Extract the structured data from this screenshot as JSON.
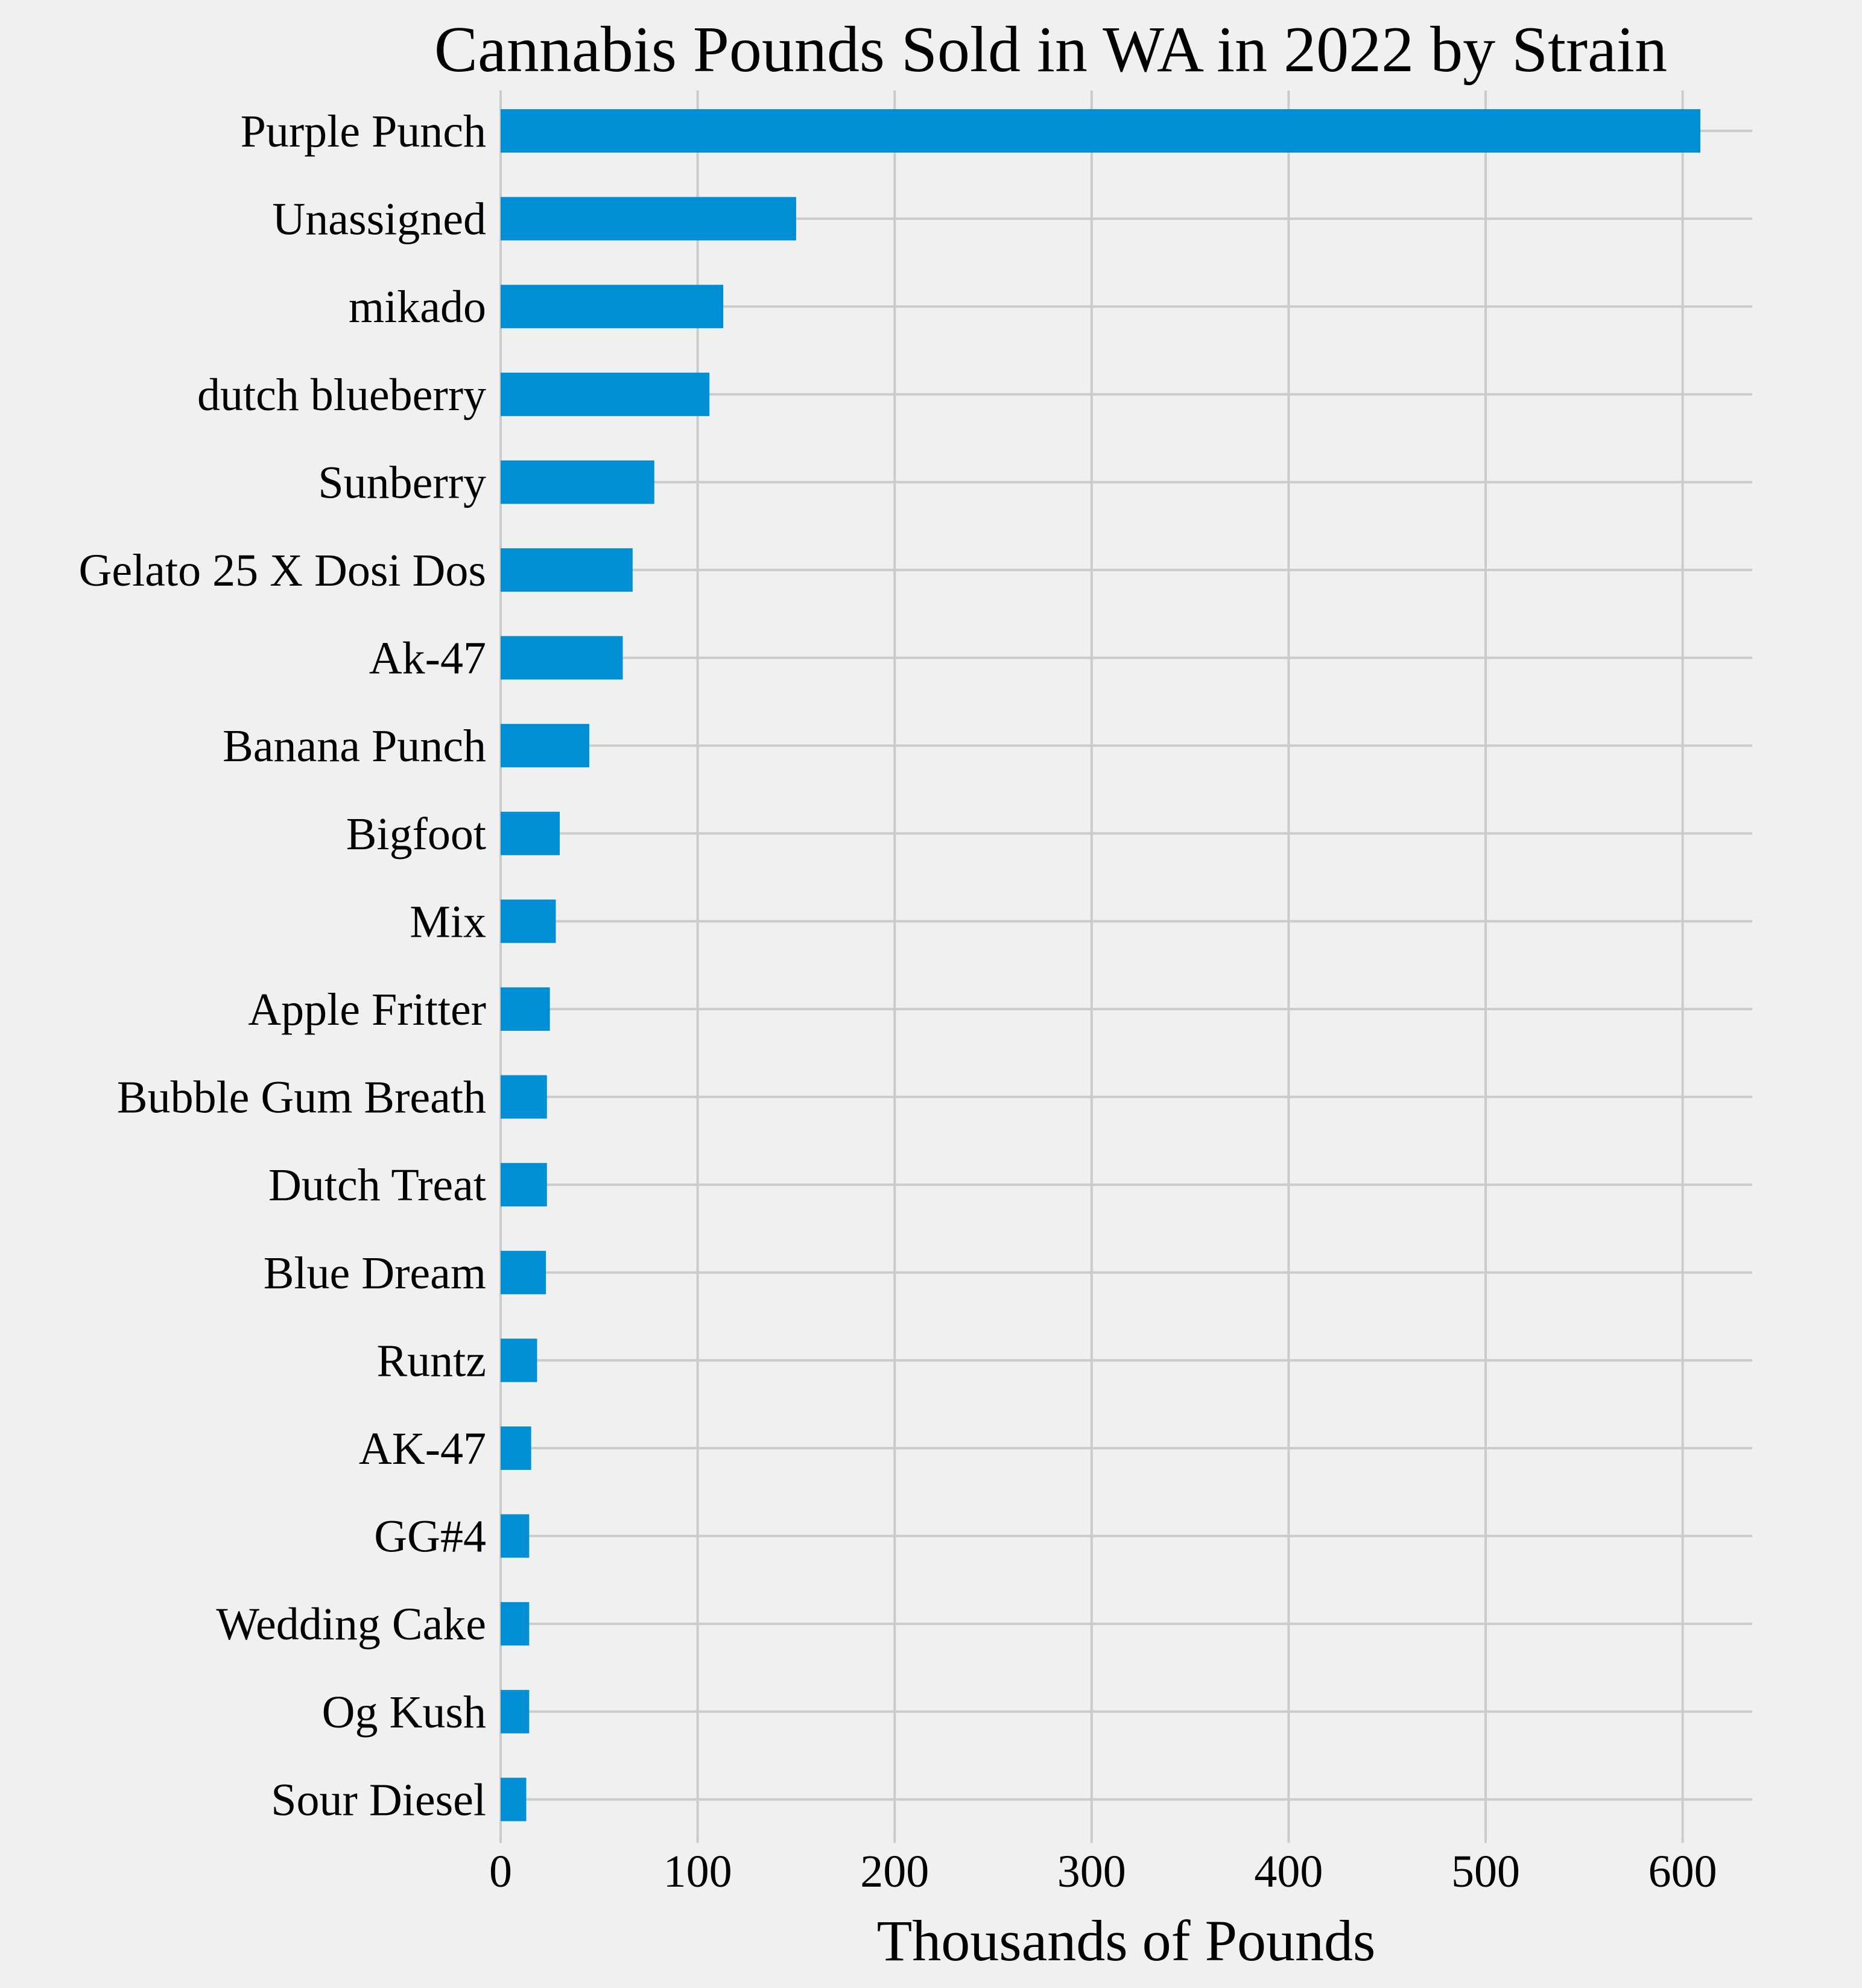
{
  "chart_data": {
    "type": "bar",
    "orientation": "horizontal",
    "title": "Cannabis Pounds Sold in WA in 2022 by Strain",
    "xlabel": "Thousands of Pounds",
    "ylabel": "",
    "xlim": [
      0,
      640
    ],
    "xticks": [
      "0",
      "100",
      "200",
      "300",
      "400",
      "500",
      "600"
    ],
    "grid": true,
    "colors": {
      "bar": "#008fd5",
      "background": "#f0f0f0",
      "grid": "#cbcbcb"
    },
    "categories": [
      "Purple Punch",
      "Unassigned",
      "mikado",
      "dutch blueberry",
      "Sunberry",
      "Gelato 25 X Dosi Dos",
      "Ak-47",
      "Banana Punch",
      "Bigfoot",
      "Mix",
      "Apple Fritter",
      "Bubble Gum Breath",
      "Dutch Treat",
      "Blue Dream",
      "Runtz",
      "AK-47",
      "GG#4",
      "Wedding Cake",
      "Og Kush",
      "Sour Diesel"
    ],
    "values": [
      609,
      150,
      113,
      106,
      78,
      67,
      62,
      45,
      30,
      28,
      25,
      23.5,
      23.5,
      23,
      18.5,
      15.5,
      14.5,
      14.5,
      14.5,
      13
    ]
  }
}
